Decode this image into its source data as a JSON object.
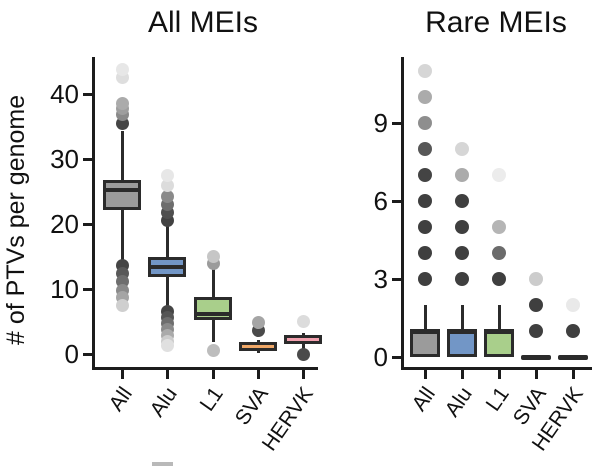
{
  "figure": {
    "ylabel": "# of PTVs per genome"
  },
  "chart_data": [
    {
      "type": "box",
      "title": "All MEIs",
      "ylabel": "# of PTVs per genome",
      "ylim": [
        0,
        45
      ],
      "yticks": [
        0,
        10,
        20,
        30,
        40
      ],
      "grid": false,
      "categories": [
        "All",
        "Alu",
        "L1",
        "SVA",
        "HERVK"
      ],
      "boxes": [
        {
          "category": "All",
          "fill": "#9b9b9b",
          "q1": 22.2,
          "median": 25.2,
          "q3": 26.8,
          "whisker_low": 14.3,
          "whisker_high": 34.3,
          "outliers": [
            {
              "v": 35.5,
              "c": "#454545"
            },
            {
              "v": 36.8,
              "c": "#8a8a8a"
            },
            {
              "v": 37.7,
              "c": "#9e9e9e"
            },
            {
              "v": 38.5,
              "c": "#ababab"
            },
            {
              "v": 42.6,
              "c": "#dedede"
            },
            {
              "v": 43.7,
              "c": "#e7e7e7"
            },
            {
              "v": 13.6,
              "c": "#454545"
            },
            {
              "v": 12.4,
              "c": "#595959"
            },
            {
              "v": 11.2,
              "c": "#6e6e6e"
            },
            {
              "v": 9.8,
              "c": "#8a8a8a"
            },
            {
              "v": 8.7,
              "c": "#a5a5a5"
            },
            {
              "v": 7.4,
              "c": "#cfcfcf"
            }
          ]
        },
        {
          "category": "Alu",
          "fill": "#7296c6",
          "q1": 11.9,
          "median": 13.4,
          "q3": 15.0,
          "whisker_low": 7.0,
          "whisker_high": 20.0,
          "outliers": [
            {
              "v": 20.5,
              "c": "#424242"
            },
            {
              "v": 21.7,
              "c": "#4f4f4f"
            },
            {
              "v": 23.0,
              "c": "#6e6e6e"
            },
            {
              "v": 24.3,
              "c": "#8a8a8a"
            },
            {
              "v": 26.0,
              "c": "#dcdcdc"
            },
            {
              "v": 27.4,
              "c": "#e7e7e7"
            },
            {
              "v": 6.5,
              "c": "#454545"
            },
            {
              "v": 5.6,
              "c": "#555555"
            },
            {
              "v": 4.7,
              "c": "#6e6e6e"
            },
            {
              "v": 3.8,
              "c": "#8a8a8a"
            },
            {
              "v": 2.9,
              "c": "#aaaaaa"
            },
            {
              "v": 2.0,
              "c": "#cccccc"
            },
            {
              "v": 1.3,
              "c": "#e0e0e0"
            }
          ]
        },
        {
          "category": "L1",
          "fill": "#a9cf8b",
          "q1": 5.3,
          "median": 6.2,
          "q3": 8.8,
          "whisker_low": 1.9,
          "whisker_high": 13.2,
          "outliers": [
            {
              "v": 13.9,
              "c": "#9b9b9b"
            },
            {
              "v": 15.0,
              "c": "#c6c6c6"
            },
            {
              "v": 0.6,
              "c": "#bdbdbd"
            }
          ]
        },
        {
          "category": "SVA",
          "fill": "#f0a868",
          "q1": 0.4,
          "median": 1.0,
          "q3": 1.8,
          "whisker_low": 0.1,
          "whisker_high": 2.1,
          "outliers": [
            {
              "v": 3.6,
              "c": "#4a4a4a"
            },
            {
              "v": 4.9,
              "c": "#a5a5a5"
            }
          ]
        },
        {
          "category": "HERVK",
          "fill": "#f2a0ae",
          "q1": 1.6,
          "median": 2.2,
          "q3": 2.9,
          "whisker_low": 0.8,
          "whisker_high": 3.3,
          "outliers": [
            {
              "v": 5.0,
              "c": "#dcdcdc"
            },
            {
              "v": 0.0,
              "c": "#4a4a4a"
            }
          ]
        }
      ]
    },
    {
      "type": "box",
      "title": "Rare MEIs",
      "ylim": [
        0,
        11.5
      ],
      "yticks": [
        0,
        3,
        6,
        9
      ],
      "grid": false,
      "categories": [
        "All",
        "Alu",
        "L1",
        "SVA",
        "HERVK"
      ],
      "boxes": [
        {
          "category": "All",
          "fill": "#9b9b9b",
          "q1": 0,
          "median": 1,
          "q3": 1,
          "whisker_low": 0,
          "whisker_high": 2,
          "outliers": [
            {
              "v": 3,
              "c": "#3f3f3f"
            },
            {
              "v": 4,
              "c": "#3f3f3f"
            },
            {
              "v": 5,
              "c": "#3f3f3f"
            },
            {
              "v": 6,
              "c": "#3f3f3f"
            },
            {
              "v": 7,
              "c": "#444444"
            },
            {
              "v": 8,
              "c": "#575757"
            },
            {
              "v": 9,
              "c": "#8e8e8e"
            },
            {
              "v": 10,
              "c": "#ababab"
            },
            {
              "v": 11,
              "c": "#d6d6d6"
            }
          ]
        },
        {
          "category": "Alu",
          "fill": "#7296c6",
          "q1": 0,
          "median": 1,
          "q3": 1,
          "whisker_low": 0,
          "whisker_high": 2,
          "outliers": [
            {
              "v": 3,
              "c": "#3f3f3f"
            },
            {
              "v": 4,
              "c": "#3f3f3f"
            },
            {
              "v": 5,
              "c": "#3f3f3f"
            },
            {
              "v": 6,
              "c": "#3f3f3f"
            },
            {
              "v": 7,
              "c": "#ababab"
            },
            {
              "v": 8,
              "c": "#d6d6d6"
            }
          ]
        },
        {
          "category": "L1",
          "fill": "#a9cf8b",
          "q1": 0,
          "median": 1,
          "q3": 1,
          "whisker_low": 0,
          "whisker_high": 2,
          "outliers": [
            {
              "v": 3,
              "c": "#3f3f3f"
            },
            {
              "v": 4,
              "c": "#6b6b6b"
            },
            {
              "v": 5,
              "c": "#b5b5b5"
            },
            {
              "v": 7,
              "c": "#ececec"
            }
          ]
        },
        {
          "category": "SVA",
          "fill": "#9b9b9b",
          "q1": 0,
          "median": 0,
          "q3": 0,
          "whisker_low": 0,
          "whisker_high": 0,
          "outliers": [
            {
              "v": 1,
              "c": "#3f3f3f"
            },
            {
              "v": 2,
              "c": "#3f3f3f"
            },
            {
              "v": 3,
              "c": "#cccccc"
            }
          ]
        },
        {
          "category": "HERVK",
          "fill": "#9b9b9b",
          "q1": 0,
          "median": 0,
          "q3": 0,
          "whisker_low": 0,
          "whisker_high": 0,
          "outliers": [
            {
              "v": 1,
              "c": "#3f3f3f"
            },
            {
              "v": 2,
              "c": "#e9e9e9"
            }
          ]
        }
      ]
    }
  ]
}
